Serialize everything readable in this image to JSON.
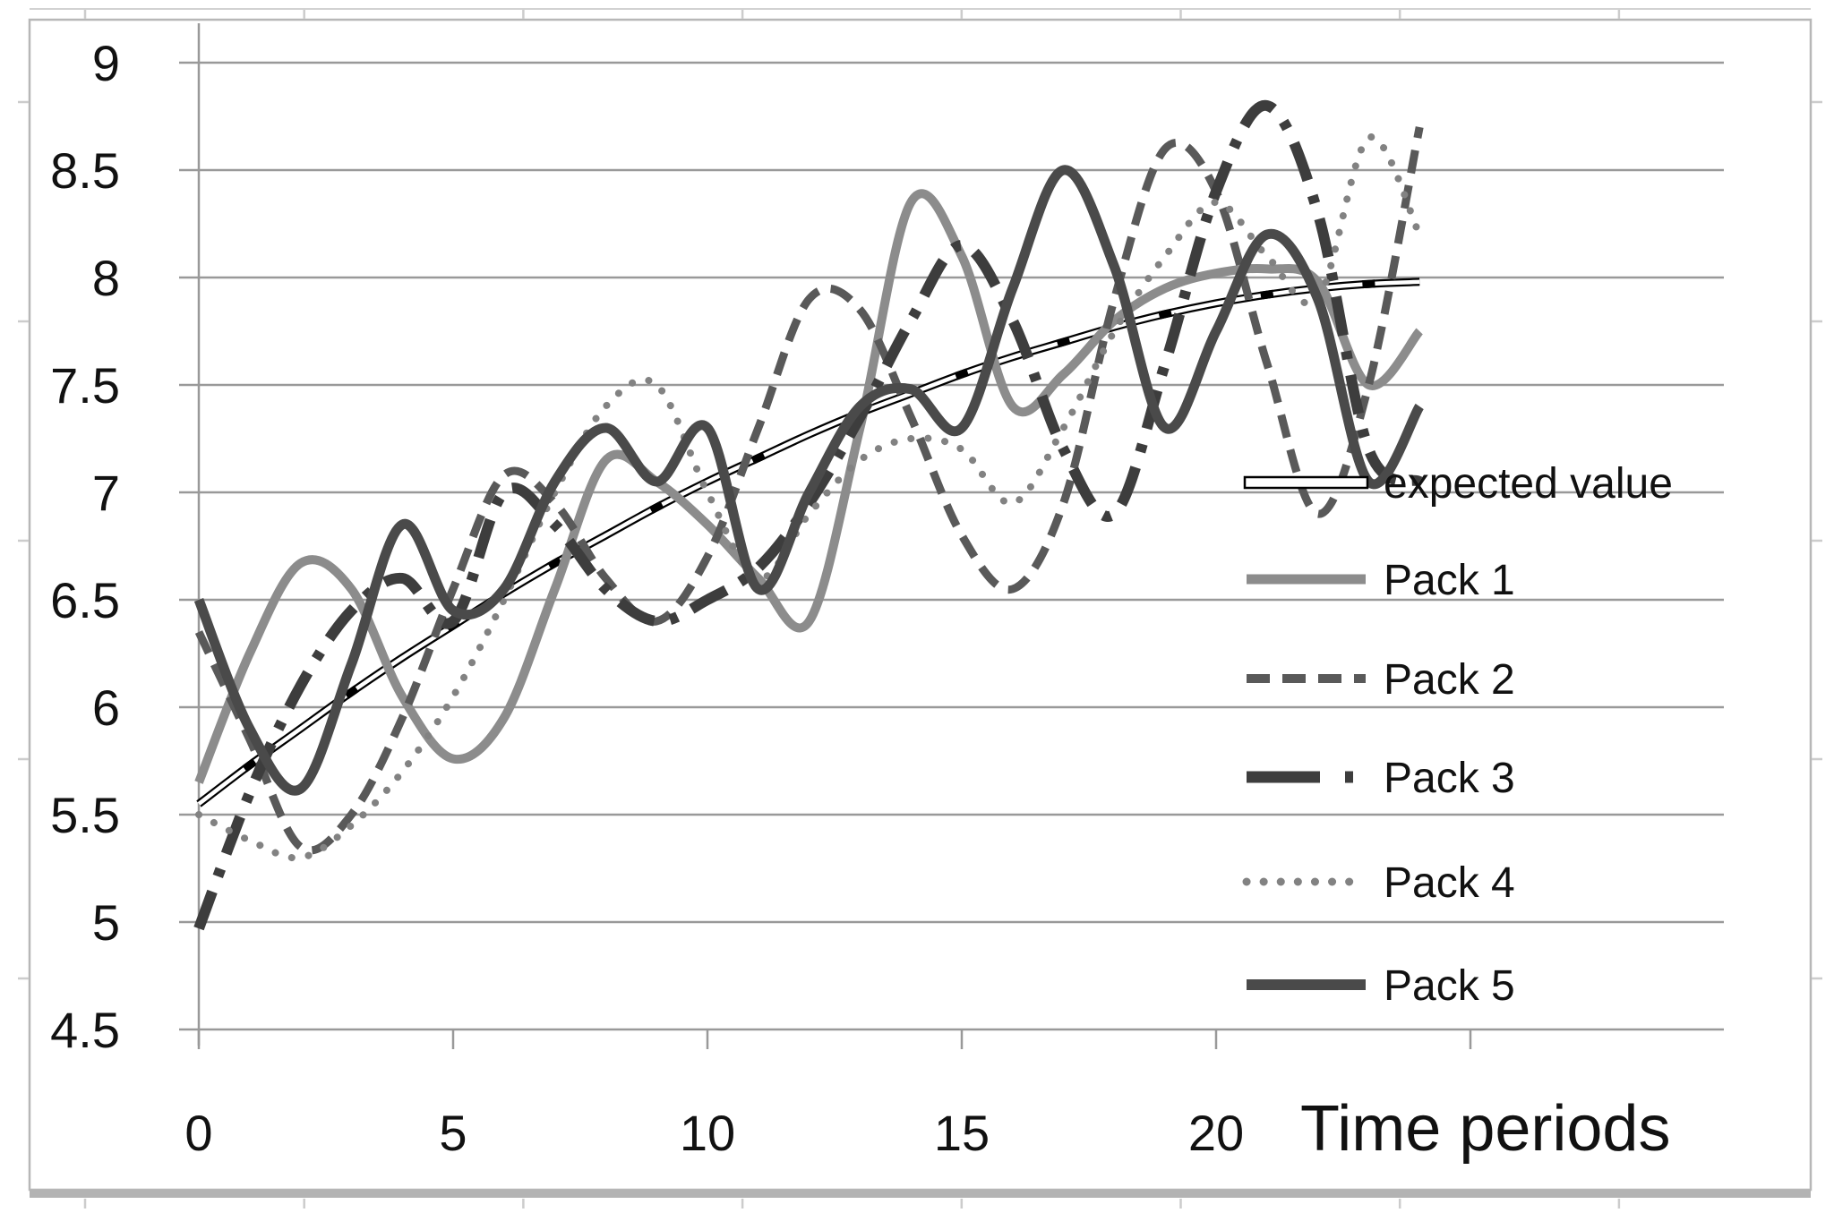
{
  "figure": {
    "background": "#ffffff",
    "border_color": "#b7b7b7",
    "bottom_bar_color": "#b3b3b3",
    "outer_tick_color": "#cccccc",
    "grid_color": "#999999",
    "text_color": "#111111"
  },
  "chart_data": {
    "type": "line",
    "title": "",
    "xlabel": "Time periods",
    "ylabel": "",
    "grid": true,
    "legend_position": "right-middle",
    "xlim": [
      0,
      30
    ],
    "ylim": [
      4.5,
      9
    ],
    "x_tick_labels": [
      "0",
      "5",
      "10",
      "15",
      "20"
    ],
    "x_tick_label_values": [
      0,
      5,
      10,
      15,
      20
    ],
    "x_tick_marks": [
      0,
      5,
      10,
      15,
      20,
      25
    ],
    "y_tick_labels": [
      "9",
      "8.5",
      "8",
      "7.5",
      "7",
      "6.5",
      "6",
      "5.5",
      "5",
      "4.5"
    ],
    "y_tick_values": [
      9,
      8.5,
      8,
      7.5,
      7,
      6.5,
      6,
      5.5,
      5,
      4.5
    ],
    "x": [
      0,
      1,
      2,
      3,
      4,
      5,
      6,
      7,
      8,
      9,
      10,
      11,
      12,
      13,
      14,
      15,
      16,
      17,
      18,
      19,
      20,
      21,
      22,
      23,
      24
    ],
    "series": [
      {
        "name": "expected value",
        "style": "double-line-marker",
        "color": "#000000",
        "inner_color": "#ffffff",
        "width": 9,
        "values": [
          5.55,
          5.73,
          5.9,
          6.07,
          6.23,
          6.38,
          6.53,
          6.67,
          6.8,
          6.93,
          7.05,
          7.16,
          7.27,
          7.37,
          7.46,
          7.55,
          7.63,
          7.7,
          7.77,
          7.83,
          7.88,
          7.92,
          7.95,
          7.97,
          7.98
        ]
      },
      {
        "name": "Pack 1",
        "style": "solid",
        "color": "#8c8c8c",
        "width": 10,
        "values": [
          5.65,
          6.25,
          6.67,
          6.55,
          6.05,
          5.76,
          5.95,
          6.55,
          7.15,
          7.05,
          6.85,
          6.6,
          6.4,
          7.3,
          8.35,
          8.1,
          7.4,
          7.55,
          7.8,
          7.95,
          8.02,
          8.04,
          7.98,
          7.5,
          7.75
        ]
      },
      {
        "name": "Pack 2",
        "style": "dashed",
        "color": "#595959",
        "width": 9,
        "values": [
          6.35,
          5.85,
          5.35,
          5.5,
          5.95,
          6.55,
          7.08,
          6.95,
          6.6,
          6.4,
          6.7,
          7.3,
          7.9,
          7.85,
          7.35,
          6.8,
          6.55,
          6.95,
          7.9,
          8.6,
          8.4,
          7.6,
          6.9,
          7.5,
          8.7
        ]
      },
      {
        "name": "Pack 3",
        "style": "long-dash-dot",
        "color": "#3d3d3d",
        "width": 12,
        "values": [
          4.97,
          5.6,
          6.1,
          6.45,
          6.6,
          6.4,
          7.0,
          6.85,
          6.55,
          6.4,
          6.5,
          6.65,
          6.95,
          7.35,
          7.8,
          8.15,
          7.8,
          7.2,
          6.9,
          7.6,
          8.4,
          8.8,
          8.3,
          7.2,
          7.05
        ]
      },
      {
        "name": "Pack 4",
        "style": "dotted",
        "color": "#828282",
        "width": 8,
        "values": [
          5.5,
          5.38,
          5.3,
          5.45,
          5.7,
          6.05,
          6.5,
          7.0,
          7.4,
          7.5,
          7.0,
          6.6,
          6.9,
          7.15,
          7.25,
          7.2,
          6.95,
          7.3,
          7.75,
          8.1,
          8.35,
          8.1,
          7.9,
          8.65,
          8.2
        ]
      },
      {
        "name": "Pack 5",
        "style": "solid",
        "color": "#4a4a4a",
        "width": 11,
        "values": [
          6.5,
          5.9,
          5.62,
          6.2,
          6.85,
          6.45,
          6.55,
          7.05,
          7.3,
          7.05,
          7.3,
          6.55,
          7.0,
          7.4,
          7.48,
          7.3,
          7.95,
          8.5,
          8.05,
          7.3,
          7.75,
          8.2,
          7.9,
          7.05,
          7.4
        ]
      }
    ]
  }
}
